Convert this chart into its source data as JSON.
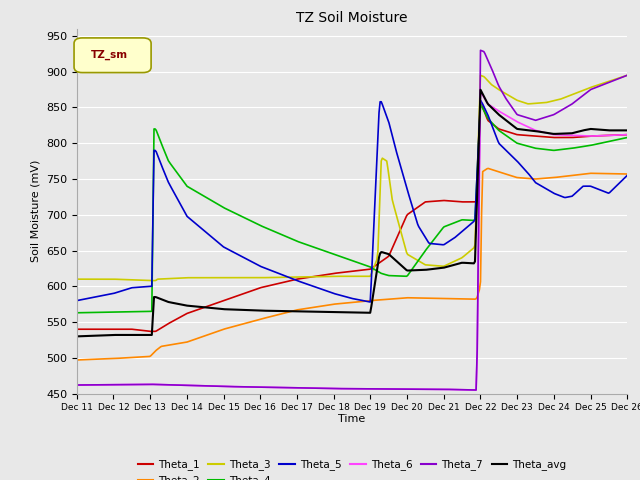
{
  "title": "TZ Soil Moisture",
  "xlabel": "Time",
  "ylabel": "Soil Moisture (mV)",
  "ylim": [
    450,
    960
  ],
  "yticks": [
    450,
    500,
    550,
    600,
    650,
    700,
    750,
    800,
    850,
    900,
    950
  ],
  "plot_bg": "#e8e8e8",
  "fig_bg": "#e8e8e8",
  "legend_label": "TZ_sm",
  "series_colors": {
    "Theta_1": "#cc0000",
    "Theta_2": "#ff8800",
    "Theta_3": "#cccc00",
    "Theta_4": "#00bb00",
    "Theta_5": "#0000cc",
    "Theta_6": "#ff44ff",
    "Theta_7": "#8800cc",
    "Theta_avg": "#000000"
  }
}
